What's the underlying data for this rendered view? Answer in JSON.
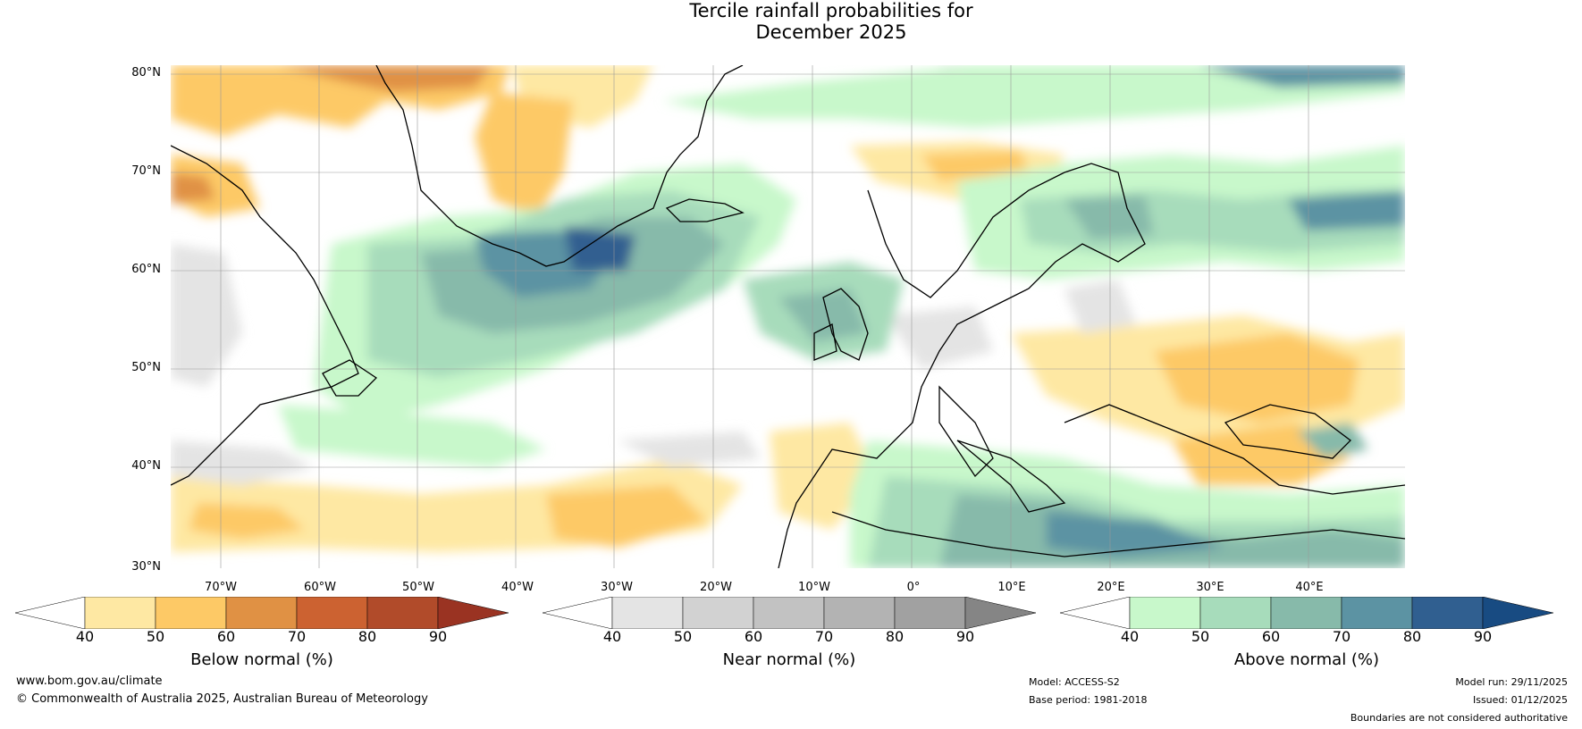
{
  "title": {
    "line1": "Tercile rainfall probabilities for",
    "line2": "December 2025"
  },
  "map": {
    "lat_labels": [
      "80°N",
      "70°N",
      "60°N",
      "50°N",
      "40°N",
      "30°N"
    ],
    "lon_labels": [
      "70°W",
      "60°W",
      "50°W",
      "40°W",
      "30°W",
      "20°W",
      "10°W",
      "0°",
      "10°E",
      "20°E",
      "30°E",
      "40°E"
    ]
  },
  "colorbars": [
    {
      "label": "Below normal (%)",
      "ticks": [
        "40",
        "50",
        "60",
        "70",
        "80",
        "90"
      ],
      "colors": [
        "#ffffff",
        "#fee8a3",
        "#fdc966",
        "#e09144",
        "#cc6231",
        "#b14b2a",
        "#9a3322"
      ]
    },
    {
      "label": "Near normal (%)",
      "ticks": [
        "40",
        "50",
        "60",
        "70",
        "80",
        "90"
      ],
      "colors": [
        "#ffffff",
        "#e4e4e4",
        "#d2d2d2",
        "#c2c2c2",
        "#b3b3b3",
        "#a1a1a1",
        "#858585"
      ]
    },
    {
      "label": "Above normal (%)",
      "ticks": [
        "40",
        "50",
        "60",
        "70",
        "80",
        "90"
      ],
      "colors": [
        "#ffffff",
        "#c8f8cb",
        "#a7dcbb",
        "#87baaa",
        "#5c93a3",
        "#305f90",
        "#184b82"
      ]
    }
  ],
  "footer": {
    "website": "www.bom.gov.au/climate",
    "copyright": "© Commonwealth of Australia 2025, Australian Bureau of Meteorology",
    "model": "Model: ACCESS-S2",
    "base_period": "Base period: 1981-2018",
    "model_run": "Model run: 29/11/2025",
    "issued": "Issued: 01/12/2025",
    "disclaimer": "Boundaries are not considered authoritative"
  }
}
